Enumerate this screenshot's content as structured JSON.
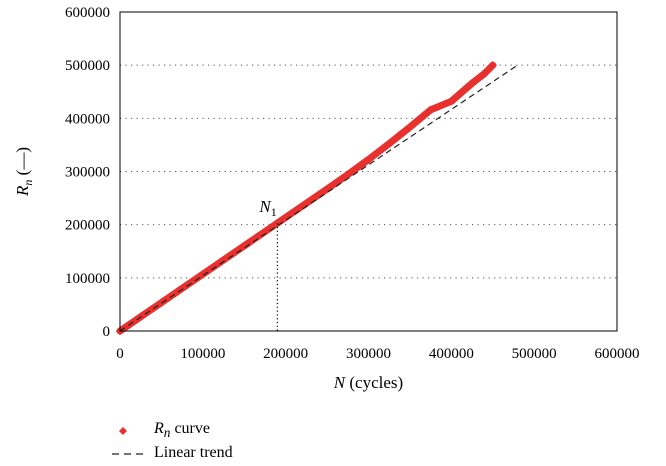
{
  "chart_data": {
    "type": "scatter",
    "x_axis": {
      "label_symbol": "N",
      "label_unit": " (cycles)",
      "min": 0,
      "max": 600000,
      "ticks": [
        0,
        100000,
        200000,
        300000,
        400000,
        500000,
        600000
      ]
    },
    "y_axis": {
      "label_symbol": "R",
      "label_subscript": "n",
      "label_unit": " (—)",
      "min": 0,
      "max": 600000,
      "ticks": [
        0,
        100000,
        200000,
        300000,
        400000,
        500000,
        600000
      ]
    },
    "grid": "horizontal-dotted",
    "series": [
      {
        "name": "Rn curve",
        "kind": "markers",
        "color": "#e8312e",
        "points": [
          [
            0,
            0
          ],
          [
            25000,
            26700
          ],
          [
            50000,
            53400
          ],
          [
            75000,
            80100
          ],
          [
            100000,
            106800
          ],
          [
            125000,
            133500
          ],
          [
            150000,
            160200
          ],
          [
            175000,
            186900
          ],
          [
            190000,
            202900
          ],
          [
            200000,
            213600
          ],
          [
            225000,
            240300
          ],
          [
            250000,
            267000
          ],
          [
            275000,
            294200
          ],
          [
            300000,
            322600
          ],
          [
            325000,
            352500
          ],
          [
            350000,
            383600
          ],
          [
            375000,
            415900
          ],
          [
            400000,
            432000
          ],
          [
            425000,
            465800
          ],
          [
            440000,
            484200
          ],
          [
            450000,
            500000
          ]
        ]
      },
      {
        "name": "Linear trend",
        "kind": "dashed-line",
        "color": "#222222",
        "points": [
          [
            0,
            0
          ],
          [
            480000,
            500000
          ]
        ]
      }
    ],
    "annotations": [
      {
        "label": "N",
        "subscript": "1",
        "x": 190000,
        "y": 202900,
        "guide": "dotted-vertical-to-x-axis"
      }
    ],
    "legend": {
      "position": "bottom-left",
      "entries": [
        {
          "symbol": "R",
          "subscript": "n",
          "suffix": " curve",
          "marker": "diamond",
          "color": "#e8312e"
        },
        {
          "text": "Linear trend",
          "marker": "dashed-line",
          "color": "#222222"
        }
      ]
    }
  }
}
